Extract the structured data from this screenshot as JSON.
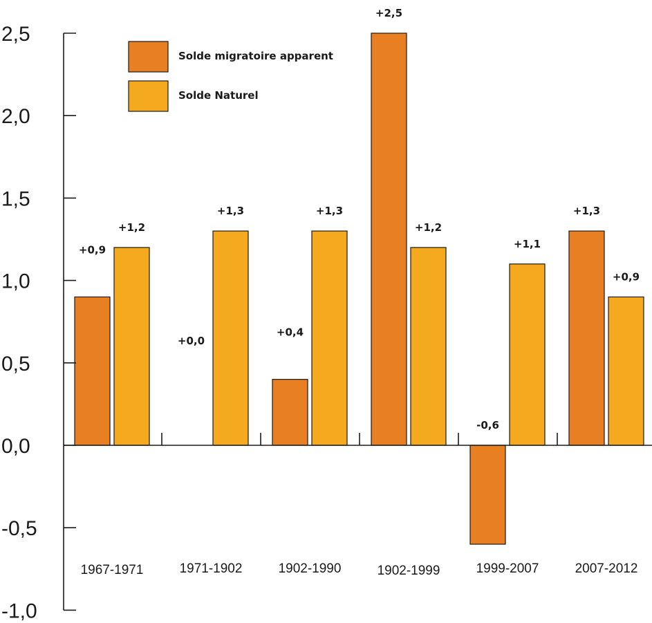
{
  "chart_data": {
    "type": "bar",
    "categories": [
      "1967-1971",
      "1971-1902",
      "1902-1990",
      "1902-1999",
      "1999-2007",
      "2007-2012"
    ],
    "series": [
      {
        "name": "Solde migratoire apparent",
        "color": "#E97F23",
        "values": [
          0.9,
          0.0,
          0.4,
          2.5,
          -0.6,
          1.3
        ],
        "labels": [
          "+0,9",
          "+0,0",
          "+0,4",
          "+2,5",
          "-0,6",
          "+1,3"
        ]
      },
      {
        "name": "Solde Naturel",
        "color": "#F4A91E",
        "values": [
          1.2,
          1.3,
          1.3,
          1.2,
          1.1,
          0.9
        ],
        "labels": [
          "+1,2",
          "+1,3",
          "+1,3",
          "+1,2",
          "+1,1",
          "+0,9"
        ]
      }
    ],
    "yticks": [
      2.5,
      2.0,
      1.5,
      1.0,
      0.5,
      0.0,
      -0.5,
      -1.0
    ],
    "ytick_labels": [
      "2,5",
      "2,0",
      "1,5",
      "1,0",
      "0,5",
      "0,0",
      "-0,5",
      "-1,0"
    ],
    "ylim": [
      -1.0,
      2.5
    ],
    "title": "",
    "xlabel": "",
    "ylabel": "",
    "legend": "top-left",
    "grid": false
  }
}
